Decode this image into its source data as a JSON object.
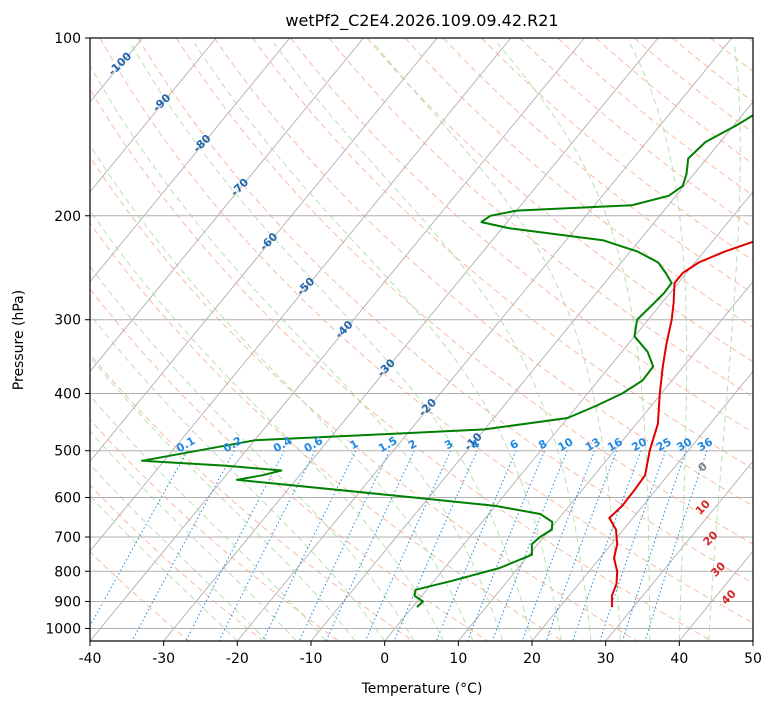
{
  "chart_data": {
    "type": "line",
    "title": "wetPf2_C2E4.2026.109.09.42.R21",
    "xlabel": "Temperature (°C)",
    "ylabel": "Pressure (hPa)",
    "xlim": [
      -40,
      50
    ],
    "ylim": [
      1050,
      100
    ],
    "y_scale": "log",
    "x_ticks": [
      -40,
      -30,
      -20,
      -10,
      0,
      10,
      20,
      30,
      40,
      50
    ],
    "y_ticks": [
      100,
      200,
      300,
      400,
      500,
      600,
      700,
      800,
      900,
      1000
    ],
    "grid": true,
    "colors": {
      "temperature": "#e00000",
      "dewpoint": "#008000",
      "skew_isotherms": "#b0b0b0",
      "dry_adiabats": "#f4a582",
      "moist_adiabats": "#a6d8a0",
      "mixing_ratio": "#1e88e5",
      "isotherm_labels": "#2166ac",
      "moist_labels": "#d62728",
      "zero_label": "#808080"
    },
    "series": [
      {
        "key": "temperature",
        "points": [
          [
            100,
            11.2
          ],
          [
            110,
            10.2
          ],
          [
            120,
            9.3
          ],
          [
            130,
            9.1
          ],
          [
            150,
            11.0
          ],
          [
            170,
            10.6
          ],
          [
            180,
            10.1
          ],
          [
            190,
            10.4
          ],
          [
            200,
            10.7
          ],
          [
            210,
            9.3
          ],
          [
            220,
            6.0
          ],
          [
            230,
            2.8
          ],
          [
            240,
            0.5
          ],
          [
            250,
            -0.5
          ],
          [
            260,
            -0.5
          ],
          [
            280,
            1.5
          ],
          [
            300,
            3.2
          ],
          [
            330,
            5.2
          ],
          [
            360,
            7.2
          ],
          [
            400,
            9.8
          ],
          [
            450,
            12.9
          ],
          [
            500,
            14.8
          ],
          [
            550,
            16.9
          ],
          [
            580,
            17.1
          ],
          [
            620,
            17.2
          ],
          [
            650,
            16.8
          ],
          [
            680,
            19.0
          ],
          [
            720,
            20.8
          ],
          [
            760,
            21.9
          ],
          [
            800,
            23.8
          ],
          [
            840,
            25.1
          ],
          [
            880,
            25.8
          ],
          [
            920,
            27.1
          ]
        ]
      },
      {
        "key": "dewpoint",
        "points": [
          [
            100,
            -0.3
          ],
          [
            105,
            -1.5
          ],
          [
            110,
            -3.0
          ],
          [
            120,
            -5.0
          ],
          [
            130,
            -7.5
          ],
          [
            140,
            -9.5
          ],
          [
            150,
            -12.0
          ],
          [
            160,
            -12.5
          ],
          [
            170,
            -11.0
          ],
          [
            178,
            -10.2
          ],
          [
            185,
            -11.0
          ],
          [
            192,
            -15.0
          ],
          [
            196,
            -30.0
          ],
          [
            200,
            -33.0
          ],
          [
            205,
            -33.5
          ],
          [
            210,
            -29.0
          ],
          [
            215,
            -22.0
          ],
          [
            220,
            -15.0
          ],
          [
            230,
            -9.0
          ],
          [
            240,
            -5.0
          ],
          [
            250,
            -2.8
          ],
          [
            260,
            -0.9
          ],
          [
            270,
            -0.8
          ],
          [
            280,
            -1.0
          ],
          [
            300,
            -1.5
          ],
          [
            320,
            0.0
          ],
          [
            340,
            3.5
          ],
          [
            360,
            5.9
          ],
          [
            380,
            6.0
          ],
          [
            400,
            4.7
          ],
          [
            420,
            2.5
          ],
          [
            440,
            0.0
          ],
          [
            460,
            -10.0
          ],
          [
            470,
            -25.0
          ],
          [
            480,
            -40.0
          ],
          [
            520,
            -53.0
          ],
          [
            530,
            -41.0
          ],
          [
            540,
            -33.0
          ],
          [
            550,
            -35.0
          ],
          [
            560,
            -38.0
          ],
          [
            600,
            -12.0
          ],
          [
            620,
            0.0
          ],
          [
            640,
            7.0
          ],
          [
            660,
            9.5
          ],
          [
            680,
            10.3
          ],
          [
            700,
            9.5
          ],
          [
            720,
            9.2
          ],
          [
            750,
            10.4
          ],
          [
            790,
            7.5
          ],
          [
            830,
            2.5
          ],
          [
            860,
            -1.5
          ],
          [
            880,
            -1.0
          ],
          [
            900,
            0.8
          ],
          [
            920,
            0.6
          ]
        ]
      }
    ],
    "annotations": {
      "isotherm_labels": [
        "-100",
        "-90",
        "-80",
        "-70",
        "-60",
        "-50",
        "-40",
        "-30",
        "-20",
        "-10"
      ],
      "mixing_ratio_labels": [
        "0.1",
        "0.2",
        "0.4",
        "0.6",
        "1",
        "1.5",
        "2",
        "3",
        "4",
        "6",
        "8",
        "10",
        "13",
        "16",
        "20",
        "25",
        "30",
        "36"
      ],
      "moist_labels": [
        "0",
        "10",
        "20",
        "30",
        "40"
      ]
    }
  }
}
